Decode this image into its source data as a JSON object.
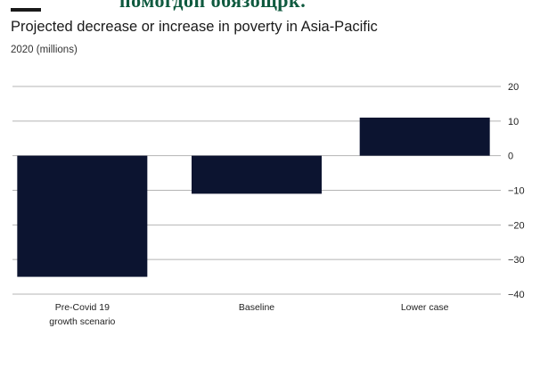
{
  "banner": {
    "text": "помогдоп обязощрк."
  },
  "colors": {
    "bar": "#0c1430",
    "grid": "#b5b5b5",
    "banner_text": "#0f5a3f"
  },
  "chart_data": {
    "type": "bar",
    "title": "Projected decrease or increase in poverty in Asia-Pacific",
    "subtitle": "2020 (millions)",
    "categories": [
      [
        "Pre-Covid 19",
        "growth scenario"
      ],
      [
        "Baseline"
      ],
      [
        "Lower case"
      ]
    ],
    "values": [
      -35,
      -11,
      11
    ],
    "ylim": [
      -40,
      20
    ],
    "yticks": [
      20,
      10,
      0,
      -10,
      -20,
      -30,
      -40
    ],
    "ytick_labels": [
      "20",
      "10",
      "0",
      "−10",
      "−20",
      "−30",
      "−40"
    ],
    "xlabel": "",
    "ylabel": "",
    "grid": true,
    "y_axis_side": "right"
  }
}
